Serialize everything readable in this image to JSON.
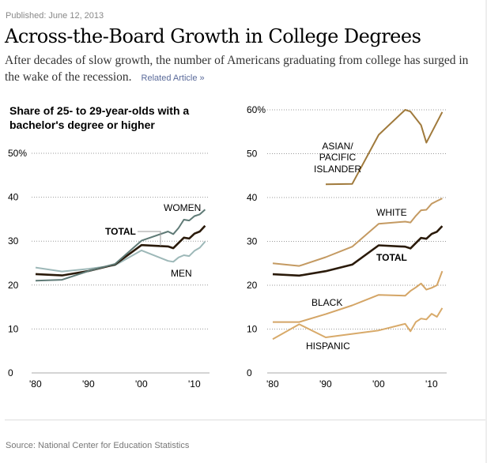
{
  "header": {
    "published": "Published: June 12, 2013",
    "title": "Across-the-Board Growth in College Degrees",
    "dek": "After decades of slow growth, the number of Americans graduating from college has surged in the wake of the recession.",
    "related_link": "Related Article »"
  },
  "footer": {
    "source": "Source: National Center for Education Statistics"
  },
  "colors": {
    "women": "#5f7a76",
    "men": "#9db8b8",
    "total": "#2a1a0a",
    "asian": "#a07a3c",
    "white": "#c49a62",
    "black": "#d4a566",
    "hispanic": "#d8aa6a",
    "grid": "#999999"
  },
  "chart_data": [
    {
      "type": "line",
      "title": "Share of 25- to 29-year-olds with a bachelor's degree or higher",
      "xlabel": "",
      "ylabel": "",
      "ylim": [
        0,
        50
      ],
      "xlim": [
        1980,
        2012
      ],
      "y_ticks": [
        "0",
        "10",
        "20",
        "30",
        "40",
        "50%"
      ],
      "y_tick_values": [
        0,
        10,
        20,
        30,
        40,
        50
      ],
      "x_ticks": [
        "'80",
        "'90",
        "'00",
        "'10"
      ],
      "x_tick_values": [
        1980,
        1990,
        2000,
        2010
      ],
      "grid": true,
      "series": [
        {
          "name": "MEN",
          "key": "men",
          "label": "MEN",
          "x": [
            1980,
            1985,
            1990,
            1995,
            2000,
            2005,
            2006,
            2007,
            2008,
            2009,
            2010,
            2011,
            2012
          ],
          "values": [
            24.0,
            23.1,
            23.7,
            24.5,
            27.9,
            25.5,
            25.3,
            26.3,
            26.8,
            26.6,
            27.8,
            28.5,
            29.9
          ]
        },
        {
          "name": "TOTAL",
          "key": "total",
          "label": "TOTAL",
          "x": [
            1980,
            1985,
            1990,
            1995,
            2000,
            2005,
            2006,
            2007,
            2008,
            2009,
            2010,
            2011,
            2012
          ],
          "values": [
            22.5,
            22.2,
            23.2,
            24.7,
            29.1,
            28.8,
            28.4,
            29.6,
            30.8,
            30.6,
            31.7,
            32.2,
            33.5
          ]
        },
        {
          "name": "WOMEN",
          "key": "women",
          "label": "WOMEN",
          "x": [
            1980,
            1985,
            1990,
            1995,
            2000,
            2005,
            2006,
            2007,
            2008,
            2009,
            2010,
            2011,
            2012
          ],
          "values": [
            21.0,
            21.2,
            23.2,
            24.8,
            30.1,
            32.2,
            31.6,
            33.0,
            34.9,
            34.7,
            35.7,
            36.1,
            37.2
          ]
        }
      ]
    },
    {
      "type": "line",
      "title": "",
      "xlabel": "",
      "ylabel": "",
      "ylim": [
        0,
        60
      ],
      "xlim": [
        1980,
        2012
      ],
      "y_ticks": [
        "0",
        "10",
        "20",
        "30",
        "40",
        "50",
        "60%"
      ],
      "y_tick_values": [
        0,
        10,
        20,
        30,
        40,
        50,
        60
      ],
      "x_ticks": [
        "'80",
        "'90",
        "'00",
        "'10"
      ],
      "x_tick_values": [
        1980,
        1990,
        2000,
        2010
      ],
      "grid": true,
      "series": [
        {
          "name": "ASIAN/PACIFIC ISLANDER",
          "key": "asian",
          "label_lines": [
            "ASIAN/",
            "PACIFIC",
            "ISLANDER"
          ],
          "x": [
            1990,
            1995,
            2000,
            2005,
            2006,
            2008,
            2009,
            2012
          ],
          "values": [
            43.0,
            43.1,
            54.3,
            60.0,
            59.6,
            56.5,
            52.5,
            59.5
          ]
        },
        {
          "name": "WHITE",
          "key": "white",
          "label": "WHITE",
          "x": [
            1980,
            1985,
            1990,
            1995,
            2000,
            2005,
            2006,
            2007,
            2008,
            2009,
            2010,
            2011,
            2012
          ],
          "values": [
            25.0,
            24.4,
            26.4,
            28.8,
            34.0,
            34.5,
            34.3,
            35.8,
            37.1,
            37.2,
            38.6,
            39.2,
            39.8
          ]
        },
        {
          "name": "TOTAL",
          "key": "total",
          "label": "TOTAL",
          "x": [
            1980,
            1985,
            1990,
            1995,
            2000,
            2005,
            2006,
            2007,
            2008,
            2009,
            2010,
            2011,
            2012
          ],
          "values": [
            22.5,
            22.2,
            23.2,
            24.7,
            29.1,
            28.8,
            28.4,
            29.6,
            30.8,
            30.6,
            31.7,
            32.2,
            33.5
          ]
        },
        {
          "name": "BLACK",
          "key": "black",
          "label": "BLACK",
          "x": [
            1980,
            1985,
            1990,
            1995,
            2000,
            2005,
            2006,
            2007,
            2008,
            2009,
            2010,
            2011,
            2012
          ],
          "values": [
            11.6,
            11.6,
            13.4,
            15.4,
            17.8,
            17.6,
            18.7,
            19.5,
            20.4,
            19.0,
            19.4,
            20.0,
            23.2
          ]
        },
        {
          "name": "HISPANIC",
          "key": "hispanic",
          "label": "HISPANIC",
          "x": [
            1980,
            1985,
            1990,
            1995,
            2000,
            2005,
            2006,
            2007,
            2008,
            2009,
            2010,
            2011,
            2012
          ],
          "values": [
            7.7,
            11.1,
            8.1,
            8.9,
            9.7,
            11.2,
            9.5,
            11.6,
            12.4,
            12.2,
            13.5,
            12.8,
            14.8
          ]
        }
      ]
    }
  ]
}
